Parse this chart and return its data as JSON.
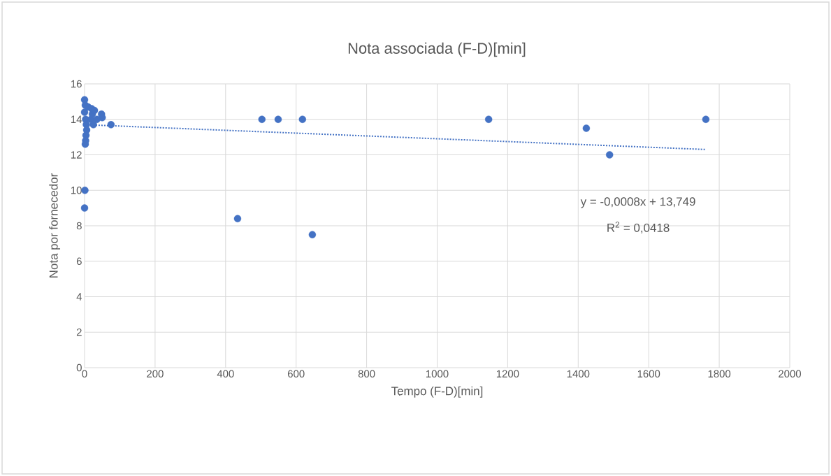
{
  "chart_data": {
    "type": "scatter",
    "title": "Nota associada (F-D)[min]",
    "xlabel": "Tempo (F-D)[min]",
    "ylabel": "Nota por fornecedor",
    "xlim": [
      0,
      2000
    ],
    "xticks": [
      0,
      200,
      400,
      600,
      800,
      1000,
      1200,
      1400,
      1600,
      1800,
      2000
    ],
    "ylim": [
      0,
      16
    ],
    "yticks": [
      0,
      2,
      4,
      6,
      8,
      10,
      12,
      14,
      16
    ],
    "grid": true,
    "marker": "circle",
    "annotations": [
      {
        "text": "y = -0,0008x + 13,749"
      },
      {
        "text": "R$^{2}$ = 0,0418"
      }
    ],
    "series": [
      {
        "color": "#4472c4",
        "x": [
          0,
          2,
          3,
          10,
          18,
          20,
          22,
          25,
          28,
          35,
          48,
          50,
          5,
          6,
          4,
          3,
          2,
          1,
          0,
          0,
          75,
          434,
          503,
          549,
          618,
          646,
          1146,
          1423,
          1489,
          1762
        ],
        "values": [
          15.1,
          14.8,
          14.0,
          14.7,
          14.0,
          14.6,
          14.3,
          13.7,
          14.5,
          14.0,
          14.3,
          14.1,
          13.7,
          13.4,
          13.1,
          12.8,
          12.6,
          10.0,
          9.0,
          14.4,
          13.7,
          8.4,
          14.0,
          14.0,
          14.0,
          7.5,
          14.0,
          13.5,
          12.0,
          14.0
        ]
      },
      {
        "type": "line",
        "color": "#4472c4",
        "line_style": "dotted",
        "marker": "none",
        "x": [
          0,
          1762
        ],
        "values": [
          13.7,
          12.3
        ]
      }
    ]
  }
}
